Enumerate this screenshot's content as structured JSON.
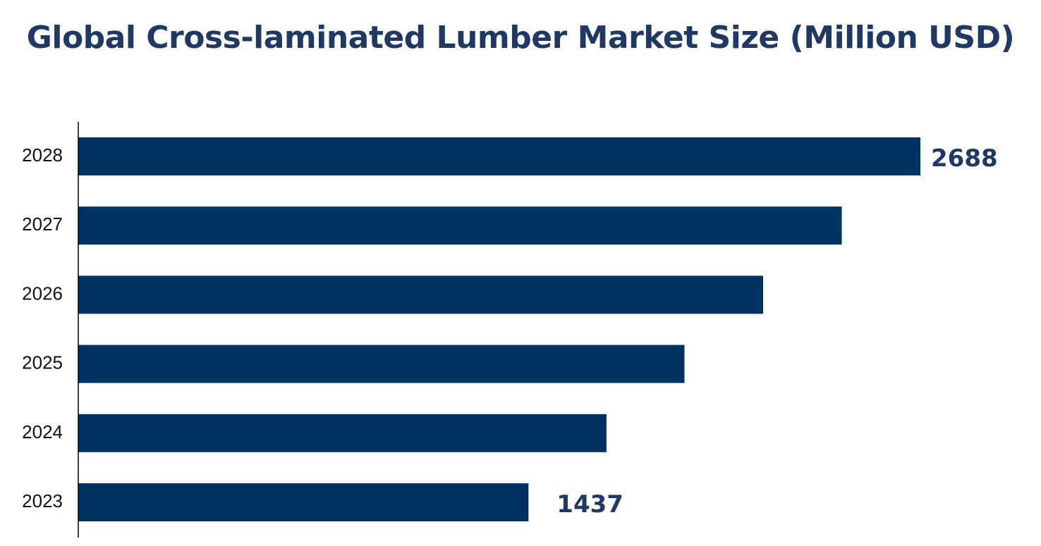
{
  "chart_data": {
    "type": "bar",
    "orientation": "horizontal",
    "title": "Global Cross-laminated Lumber Market Size (Million USD)",
    "xlabel": "",
    "ylabel": "",
    "categories": [
      "2028",
      "2027",
      "2026",
      "2025",
      "2024",
      "2023"
    ],
    "values": [
      2688,
      2437,
      2186,
      1935,
      1686,
      1437
    ],
    "data_labels": [
      {
        "category": "2028",
        "text": "2688"
      },
      {
        "category": "2023",
        "text": "1437"
      }
    ],
    "grid": false,
    "legend": "none",
    "colors": {
      "bar": "#003361",
      "title": "#1f3864",
      "data_label": "#1f3864",
      "axis": "#000000"
    }
  }
}
